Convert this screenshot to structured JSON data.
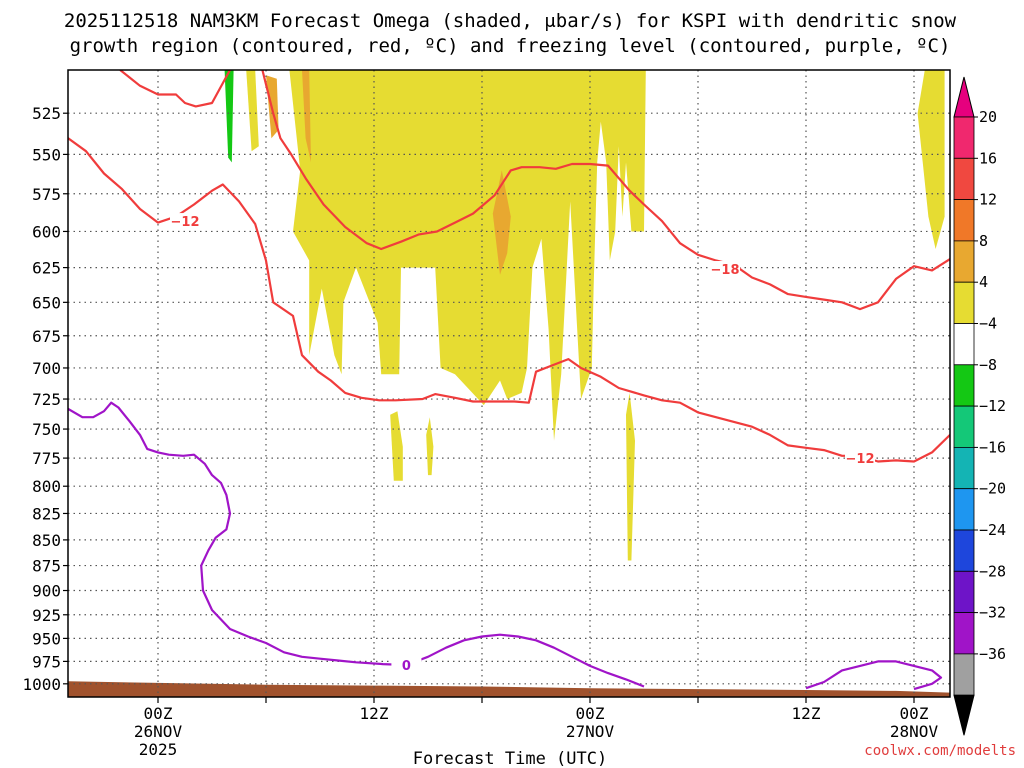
{
  "chart_data": {
    "type": "time-height",
    "title_line1": "2025112518 NAM3KM Forecast Omega (shaded, μbar/s) for KSPI with dendritic snow",
    "title_line2": "growth region (contoured, red, ºC) and freezing level (contoured, purple, ºC)",
    "xlabel": "Forecast Time (UTC)",
    "credit": "coolwx.com/modelts",
    "x_range_hours": [
      -5,
      44
    ],
    "y_range_mb": [
      500,
      1015
    ],
    "y_ticks": [
      525,
      550,
      575,
      600,
      625,
      650,
      675,
      700,
      725,
      750,
      775,
      800,
      825,
      850,
      875,
      900,
      925,
      950,
      975,
      1000
    ],
    "x_ticks": [
      {
        "hour": 0,
        "line1": "00Z",
        "line2": "26NOV",
        "line3": "2025"
      },
      {
        "hour": 6,
        "line1": "",
        "line2": "",
        "line3": ""
      },
      {
        "hour": 12,
        "line1": "12Z",
        "line2": "",
        "line3": ""
      },
      {
        "hour": 18,
        "line1": "",
        "line2": "",
        "line3": ""
      },
      {
        "hour": 24,
        "line1": "00Z",
        "line2": "27NOV",
        "line3": ""
      },
      {
        "hour": 30,
        "line1": "",
        "line2": "",
        "line3": ""
      },
      {
        "hour": 36,
        "line1": "12Z",
        "line2": "",
        "line3": ""
      },
      {
        "hour": 42,
        "line1": "00Z",
        "line2": "28NOV",
        "line3": ""
      }
    ],
    "colorbar": {
      "labels": [
        "20",
        "16",
        "12",
        "8",
        "4",
        "−4",
        "−8",
        "−12",
        "−16",
        "−20",
        "−24",
        "−28",
        "−32",
        "−36"
      ],
      "colors_top_to_bottom": [
        "#f0286e",
        "#f04840",
        "#f07828",
        "#e8a830",
        "#e6dc32",
        "#ffffff",
        "#14c814",
        "#14c878",
        "#14b4b4",
        "#1e96f0",
        "#1e46dc",
        "#6e14c8",
        "#a014c8",
        "#a0a0a0"
      ],
      "top_cap": "#e6007e",
      "bottom_cap": "#000000"
    },
    "omega_regions": [
      {
        "color": "#e6dc32",
        "pts": [
          [
            4.9,
            500
          ],
          [
            5.4,
            500
          ],
          [
            5.6,
            545
          ],
          [
            5.2,
            548
          ]
        ]
      },
      {
        "color": "#14c814",
        "pts": [
          [
            3.7,
            500
          ],
          [
            4.2,
            500
          ],
          [
            4.1,
            555
          ],
          [
            3.9,
            552
          ]
        ]
      },
      {
        "color": "#e6dc32",
        "pts": [
          [
            5.8,
            500
          ],
          [
            7.3,
            500
          ],
          [
            7.9,
            560
          ],
          [
            7.5,
            600
          ],
          [
            8.4,
            620
          ],
          [
            8.4,
            690
          ],
          [
            9.1,
            640
          ],
          [
            9.8,
            690
          ],
          [
            10.2,
            705
          ],
          [
            10.3,
            650
          ],
          [
            11.0,
            625
          ],
          [
            12.2,
            665
          ],
          [
            12.4,
            705
          ],
          [
            13.4,
            705
          ],
          [
            13.5,
            625
          ],
          [
            14.4,
            625
          ],
          [
            15.4,
            625
          ],
          [
            15.7,
            700
          ],
          [
            16.5,
            705
          ],
          [
            18.1,
            730
          ],
          [
            19.0,
            710
          ],
          [
            19.4,
            725
          ],
          [
            20.2,
            720
          ],
          [
            20.5,
            700
          ],
          [
            20.8,
            625
          ],
          [
            21.3,
            605
          ],
          [
            21.7,
            670
          ],
          [
            22.0,
            760
          ],
          [
            22.4,
            705
          ],
          [
            22.9,
            580
          ],
          [
            23.5,
            725
          ],
          [
            24.1,
            700
          ],
          [
            24.2,
            640
          ],
          [
            24.4,
            555
          ],
          [
            24.6,
            530
          ],
          [
            24.9,
            555
          ],
          [
            25.1,
            620
          ],
          [
            25.4,
            600
          ],
          [
            25.6,
            545
          ],
          [
            25.8,
            590
          ],
          [
            26.0,
            555
          ],
          [
            26.3,
            600
          ],
          [
            27.0,
            600
          ],
          [
            27.1,
            500
          ]
        ]
      },
      {
        "color": "#e8a830",
        "pts": [
          [
            6.0,
            503
          ],
          [
            6.6,
            505
          ],
          [
            6.7,
            535
          ],
          [
            6.3,
            540
          ]
        ]
      },
      {
        "color": "#e8a830",
        "pts": [
          [
            8.0,
            500
          ],
          [
            8.4,
            500
          ],
          [
            8.5,
            555
          ],
          [
            8.2,
            540
          ]
        ]
      },
      {
        "color": "#e8a830",
        "pts": [
          [
            18.6,
            588
          ],
          [
            19.1,
            560
          ],
          [
            19.6,
            590
          ],
          [
            19.4,
            615
          ],
          [
            19.0,
            630
          ]
        ]
      },
      {
        "color": "#e6dc32",
        "pts": [
          [
            12.9,
            738
          ],
          [
            13.3,
            735
          ],
          [
            13.6,
            765
          ],
          [
            13.6,
            795
          ],
          [
            13.1,
            795
          ]
        ]
      },
      {
        "color": "#e6dc32",
        "pts": [
          [
            14.9,
            755
          ],
          [
            15.1,
            740
          ],
          [
            15.3,
            765
          ],
          [
            15.2,
            790
          ],
          [
            15.0,
            790
          ]
        ]
      },
      {
        "color": "#e6dc32",
        "pts": [
          [
            26.0,
            738
          ],
          [
            26.2,
            720
          ],
          [
            26.5,
            760
          ],
          [
            26.3,
            870
          ],
          [
            26.1,
            870
          ]
        ]
      },
      {
        "color": "#e6dc32",
        "pts": [
          [
            42.2,
            525
          ],
          [
            42.6,
            500
          ],
          [
            43.7,
            500
          ],
          [
            43.7,
            590
          ],
          [
            43.2,
            612
          ],
          [
            42.8,
            590
          ]
        ]
      }
    ],
    "terrain": [
      [
        -5,
        997
      ],
      [
        0,
        999
      ],
      [
        6,
        1001
      ],
      [
        12,
        1002
      ],
      [
        18,
        1003
      ],
      [
        24,
        1005
      ],
      [
        30,
        1006
      ],
      [
        36,
        1007
      ],
      [
        41,
        1008
      ],
      [
        44,
        1010
      ]
    ],
    "contours": [
      {
        "name": "dgz-top",
        "color": "#f03c3c",
        "pts": [
          [
            -5,
            540
          ],
          [
            -4,
            548
          ],
          [
            -3,
            562
          ],
          [
            -2,
            572
          ],
          [
            -1,
            585
          ],
          [
            0,
            594
          ],
          [
            1,
            590
          ],
          [
            2,
            582
          ],
          [
            3,
            573
          ],
          [
            3.6,
            569
          ],
          [
            4.5,
            580
          ],
          [
            5.4,
            595
          ],
          [
            6.0,
            620
          ],
          [
            6.4,
            650
          ],
          [
            7.5,
            660
          ],
          [
            8.0,
            690
          ],
          [
            8.9,
            703
          ],
          [
            9.6,
            710
          ],
          [
            10.4,
            720
          ],
          [
            11.3,
            724
          ],
          [
            12.3,
            726
          ],
          [
            13.2,
            726
          ],
          [
            14.7,
            725
          ],
          [
            15.4,
            721
          ],
          [
            16.5,
            724
          ],
          [
            17.5,
            727
          ],
          [
            18.4,
            727
          ],
          [
            19.8,
            727
          ],
          [
            20.6,
            728
          ],
          [
            21.0,
            703
          ],
          [
            21.9,
            698
          ],
          [
            22.8,
            693
          ],
          [
            23.5,
            700
          ],
          [
            24.6,
            707
          ],
          [
            25.6,
            716
          ],
          [
            27.0,
            722
          ],
          [
            28.0,
            726
          ],
          [
            29.0,
            728
          ],
          [
            30.0,
            736
          ],
          [
            31.0,
            740
          ],
          [
            32.0,
            744
          ],
          [
            33.0,
            748
          ],
          [
            34.0,
            755
          ],
          [
            35.0,
            764
          ],
          [
            36.0,
            766
          ],
          [
            37.0,
            768
          ],
          [
            38.0,
            773
          ],
          [
            39.0,
            773
          ],
          [
            40.0,
            778
          ],
          [
            41.0,
            777
          ],
          [
            42.0,
            778
          ],
          [
            43.0,
            770
          ],
          [
            44.0,
            755
          ]
        ],
        "label": "−12",
        "label_at": [
          39.0,
          775
        ]
      },
      {
        "name": "dgz-bottom",
        "color": "#f03c3c",
        "pts": [
          [
            -2.1,
            500
          ],
          [
            -1,
            509
          ],
          [
            0,
            514
          ],
          [
            1,
            514
          ],
          [
            1.5,
            519
          ],
          [
            2.1,
            521
          ],
          [
            3,
            519
          ],
          [
            4.0,
            500
          ]
        ],
        "label": "",
        "label_at": [
          0,
          0
        ]
      },
      {
        "name": "dgz-upper",
        "color": "#f03c3c",
        "pts": [
          [
            5.8,
            500
          ],
          [
            6.4,
            525
          ],
          [
            6.8,
            540
          ],
          [
            7.4,
            550
          ],
          [
            8.2,
            565
          ],
          [
            9.2,
            582
          ],
          [
            10.4,
            597
          ],
          [
            11.6,
            608
          ],
          [
            12.4,
            612
          ],
          [
            13.5,
            607
          ],
          [
            14.5,
            602
          ],
          [
            15.5,
            600
          ],
          [
            16.5,
            594
          ],
          [
            17.5,
            588
          ],
          [
            18.7,
            576
          ],
          [
            19.6,
            560
          ],
          [
            20.2,
            558
          ],
          [
            21.2,
            558
          ],
          [
            22.1,
            559
          ],
          [
            23.0,
            556
          ],
          [
            24.0,
            556
          ],
          [
            25.0,
            557
          ],
          [
            26.2,
            573
          ],
          [
            27.0,
            582
          ],
          [
            28.0,
            593
          ],
          [
            29.0,
            608
          ],
          [
            30.0,
            616
          ],
          [
            31.0,
            620
          ],
          [
            32.0,
            623
          ],
          [
            33.0,
            632
          ],
          [
            34.0,
            637
          ],
          [
            35.0,
            644
          ],
          [
            36.0,
            646
          ],
          [
            37.0,
            648
          ],
          [
            38.0,
            650
          ],
          [
            39.0,
            655
          ],
          [
            40.0,
            650
          ],
          [
            41.0,
            633
          ],
          [
            42.0,
            624
          ],
          [
            43.0,
            627
          ],
          [
            44.0,
            619
          ]
        ],
        "label": "−18",
        "label_at": [
          31.5,
          626
        ]
      },
      {
        "name": "dgz-left",
        "color": "#f03c3c",
        "pts": [
          [
            1.0,
            590
          ],
          [
            1.8,
            595
          ]
        ],
        "label": "−12",
        "label_at": [
          1.5,
          593
        ]
      },
      {
        "name": "freezing-level",
        "color": "#a014c8",
        "pts": [
          [
            -5,
            733
          ],
          [
            -4.2,
            740
          ],
          [
            -3.6,
            740
          ],
          [
            -3,
            735
          ],
          [
            -2.6,
            728
          ],
          [
            -2.2,
            732
          ],
          [
            -1.6,
            743
          ],
          [
            -1.0,
            755
          ],
          [
            -0.6,
            767
          ],
          [
            0,
            770
          ],
          [
            0.6,
            772
          ],
          [
            1.4,
            773
          ],
          [
            2.0,
            772
          ],
          [
            2.6,
            780
          ],
          [
            3.0,
            790
          ],
          [
            3.5,
            797
          ],
          [
            3.8,
            808
          ],
          [
            4.0,
            825
          ],
          [
            3.8,
            840
          ],
          [
            3.2,
            848
          ],
          [
            2.8,
            860
          ],
          [
            2.4,
            875
          ],
          [
            2.5,
            900
          ],
          [
            3.0,
            920
          ],
          [
            4.0,
            940
          ],
          [
            5.0,
            948
          ],
          [
            6.0,
            955
          ],
          [
            7.0,
            965
          ],
          [
            8.0,
            970
          ],
          [
            9.0,
            972
          ],
          [
            10.0,
            974
          ],
          [
            11.0,
            976
          ],
          [
            12.5,
            978
          ],
          [
            13.8,
            979
          ],
          [
            15.0,
            970
          ],
          [
            16.0,
            960
          ],
          [
            17.0,
            952
          ],
          [
            18.0,
            948
          ],
          [
            19.0,
            946
          ],
          [
            20.0,
            948
          ],
          [
            21.0,
            952
          ],
          [
            22.0,
            960
          ],
          [
            23.0,
            970
          ],
          [
            24.0,
            980
          ],
          [
            25.0,
            988
          ],
          [
            26.0,
            995
          ],
          [
            27.0,
            1003
          ]
        ],
        "label": "0",
        "label_at": [
          13.8,
          979
        ]
      },
      {
        "name": "freezing-level-east",
        "color": "#a014c8",
        "pts": [
          [
            36.0,
            1005
          ],
          [
            37.0,
            998
          ],
          [
            38.0,
            985
          ],
          [
            39.0,
            980
          ],
          [
            40.0,
            975
          ],
          [
            41.0,
            975
          ],
          [
            42.0,
            980
          ],
          [
            43.0,
            985
          ],
          [
            43.5,
            993
          ],
          [
            43.0,
            1000
          ],
          [
            42.0,
            1006
          ]
        ],
        "label": "",
        "label_at": [
          0,
          0
        ]
      }
    ]
  }
}
